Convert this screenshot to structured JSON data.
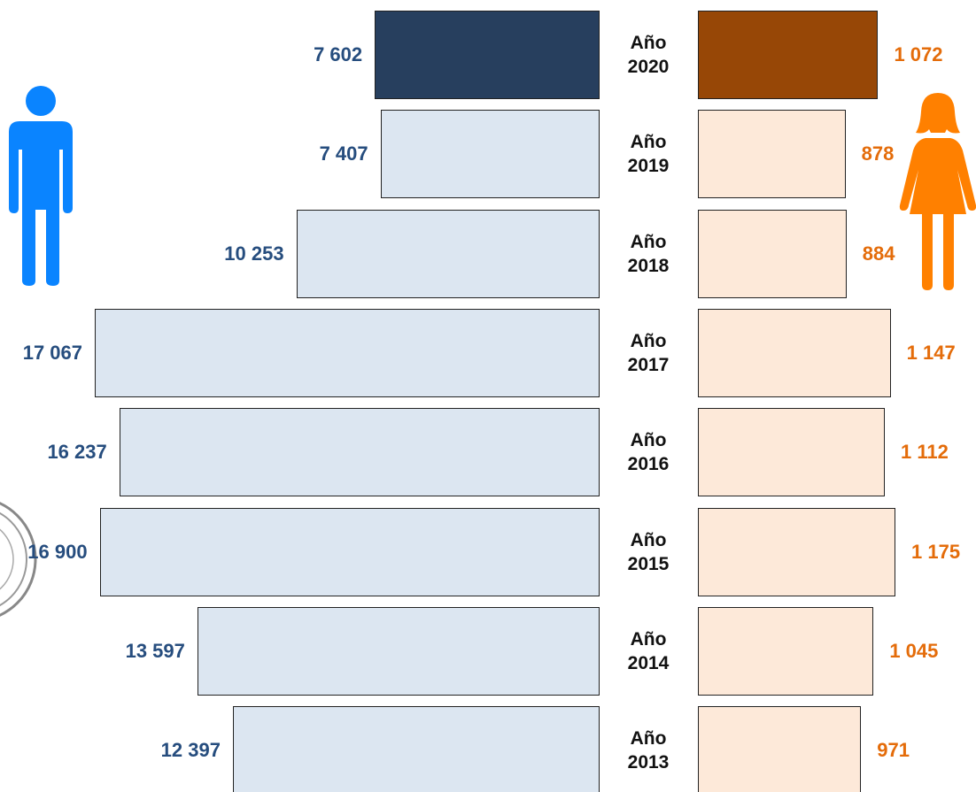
{
  "chart_data": {
    "type": "butterfly",
    "categories": [
      "Año 2020",
      "Año 2019",
      "Año 2018",
      "Año 2017",
      "Año 2016",
      "Año 2015",
      "Año 2014",
      "Año 2013"
    ],
    "series": [
      {
        "side": "left",
        "label_color": "#264d7e",
        "colors": [
          "#273f5e",
          "#dce6f1",
          "#dce6f1",
          "#dce6f1",
          "#dce6f1",
          "#dce6f1",
          "#dce6f1",
          "#dce6f1"
        ],
        "values": [
          7602,
          7407,
          10253,
          17067,
          16237,
          16900,
          13597,
          12397
        ],
        "value_labels": [
          "7 602",
          "7 407",
          "10 253",
          "17 067",
          "16 237",
          "16 900",
          "13 597",
          "12 397"
        ]
      },
      {
        "side": "right",
        "label_color": "#e46c0a",
        "colors": [
          "#974706",
          "#fde9d9",
          "#fde9d9",
          "#fde9d9",
          "#fde9d9",
          "#fde9d9",
          "#fde9d9",
          "#fde9d9"
        ],
        "values": [
          1072,
          878,
          884,
          1147,
          1112,
          1175,
          1045,
          971
        ],
        "value_labels": [
          "1 072",
          "878",
          "884",
          "1 147",
          "1 112",
          "1 175",
          "1 045",
          "971"
        ]
      }
    ]
  }
}
